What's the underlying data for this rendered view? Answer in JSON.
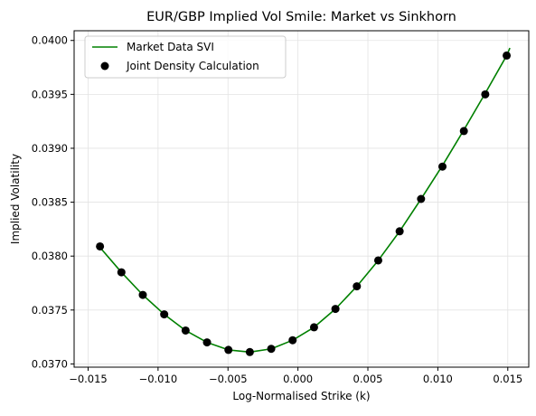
{
  "chart_data": {
    "type": "line",
    "title": "EUR/GBP Implied Vol Smile: Market vs Sinkhorn",
    "xlabel": "Log-Normalised Strike (k)",
    "ylabel": "Implied Volatility",
    "xlim": [
      -0.016,
      0.0165
    ],
    "ylim": [
      0.03697,
      0.04009
    ],
    "xticks": [
      -0.015,
      -0.01,
      -0.005,
      0.0,
      0.005,
      0.01,
      0.015
    ],
    "xtick_labels": [
      "−0.015",
      "−0.010",
      "−0.005",
      "0.000",
      "0.005",
      "0.010",
      "0.015"
    ],
    "yticks": [
      0.037,
      0.0375,
      0.038,
      0.0385,
      0.039,
      0.0395,
      0.04
    ],
    "ytick_labels": [
      "0.0370",
      "0.0375",
      "0.0380",
      "0.0385",
      "0.0390",
      "0.0395",
      "0.0400"
    ],
    "grid": true,
    "legend_position": "upper-left",
    "series": [
      {
        "name": "Market Data SVI",
        "kind": "line",
        "color": "#008000",
        "x": [
          -0.01415,
          -0.01262,
          -0.01109,
          -0.00956,
          -0.00803,
          -0.0065,
          -0.00497,
          -0.00344,
          -0.00191,
          -0.00038,
          0.00115,
          0.00268,
          0.00421,
          0.00574,
          0.00727,
          0.0088,
          0.01033,
          0.01186,
          0.01339,
          0.01492,
          0.01515
        ],
        "y": [
          0.03808,
          0.03785,
          0.03764,
          0.03746,
          0.03731,
          0.0372,
          0.03713,
          0.03711,
          0.03714,
          0.03722,
          0.03734,
          0.03751,
          0.03772,
          0.03796,
          0.03823,
          0.03853,
          0.03884,
          0.03917,
          0.03951,
          0.03986,
          0.03993
        ]
      },
      {
        "name": "Joint Density Calculation",
        "kind": "scatter",
        "color": "#000000",
        "x": [
          -0.01415,
          -0.01262,
          -0.01109,
          -0.00956,
          -0.00803,
          -0.0065,
          -0.00497,
          -0.00344,
          -0.00191,
          -0.00038,
          0.00115,
          0.00268,
          0.00421,
          0.00574,
          0.00727,
          0.0088,
          0.01033,
          0.01186,
          0.01339,
          0.01492
        ],
        "y": [
          0.03809,
          0.03785,
          0.03764,
          0.03746,
          0.03731,
          0.0372,
          0.03713,
          0.03711,
          0.03714,
          0.03722,
          0.03734,
          0.03751,
          0.03772,
          0.03796,
          0.03823,
          0.03853,
          0.03883,
          0.03916,
          0.0395,
          0.03986
        ]
      }
    ]
  }
}
